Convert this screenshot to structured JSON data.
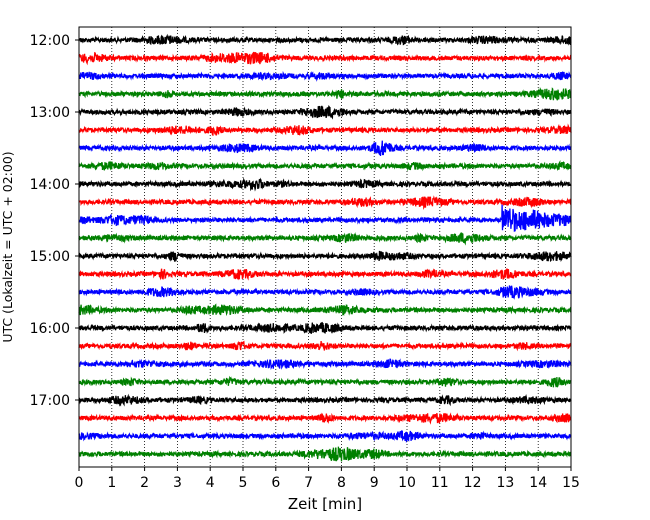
{
  "chart_data": {
    "type": "line",
    "title": "",
    "xlabel": "Zeit  [min]",
    "ylabel": "UTC (Lokalzeit = UTC + 02:00)",
    "xlim": [
      0,
      15
    ],
    "x_ticks": [
      "0",
      "1",
      "2",
      "3",
      "4",
      "5",
      "6",
      "7",
      "8",
      "9",
      "10",
      "11",
      "12",
      "13",
      "14",
      "15"
    ],
    "y_tick_labels": [
      "12:00",
      "13:00",
      "14:00",
      "15:00",
      "16:00",
      "17:00"
    ],
    "row_interval_minutes": 15,
    "grid": {
      "vertical": true,
      "style": "dotted"
    },
    "legend": "none",
    "trace_colors": [
      "#000000",
      "#ff0000",
      "#0000ff",
      "#008000"
    ],
    "traces": [
      {
        "start": "12:00",
        "color": "#000000"
      },
      {
        "start": "12:15",
        "color": "#ff0000"
      },
      {
        "start": "12:30",
        "color": "#0000ff"
      },
      {
        "start": "12:45",
        "color": "#008000"
      },
      {
        "start": "13:00",
        "color": "#000000"
      },
      {
        "start": "13:15",
        "color": "#ff0000"
      },
      {
        "start": "13:30",
        "color": "#0000ff"
      },
      {
        "start": "13:45",
        "color": "#008000"
      },
      {
        "start": "14:00",
        "color": "#000000"
      },
      {
        "start": "14:15",
        "color": "#ff0000"
      },
      {
        "start": "14:30",
        "color": "#0000ff",
        "event": {
          "onset_minute": 12.9,
          "peak_hours": 0.22,
          "coda_end_minute": 15
        }
      },
      {
        "start": "14:45",
        "color": "#008000"
      },
      {
        "start": "15:00",
        "color": "#000000"
      },
      {
        "start": "15:15",
        "color": "#ff0000"
      },
      {
        "start": "15:30",
        "color": "#0000ff"
      },
      {
        "start": "15:45",
        "color": "#008000"
      },
      {
        "start": "16:00",
        "color": "#000000"
      },
      {
        "start": "16:15",
        "color": "#ff0000"
      },
      {
        "start": "16:30",
        "color": "#0000ff"
      },
      {
        "start": "16:45",
        "color": "#008000"
      },
      {
        "start": "17:00",
        "color": "#000000"
      },
      {
        "start": "17:15",
        "color": "#ff0000"
      },
      {
        "start": "17:30",
        "color": "#0000ff"
      },
      {
        "start": "17:45",
        "color": "#008000"
      }
    ]
  }
}
